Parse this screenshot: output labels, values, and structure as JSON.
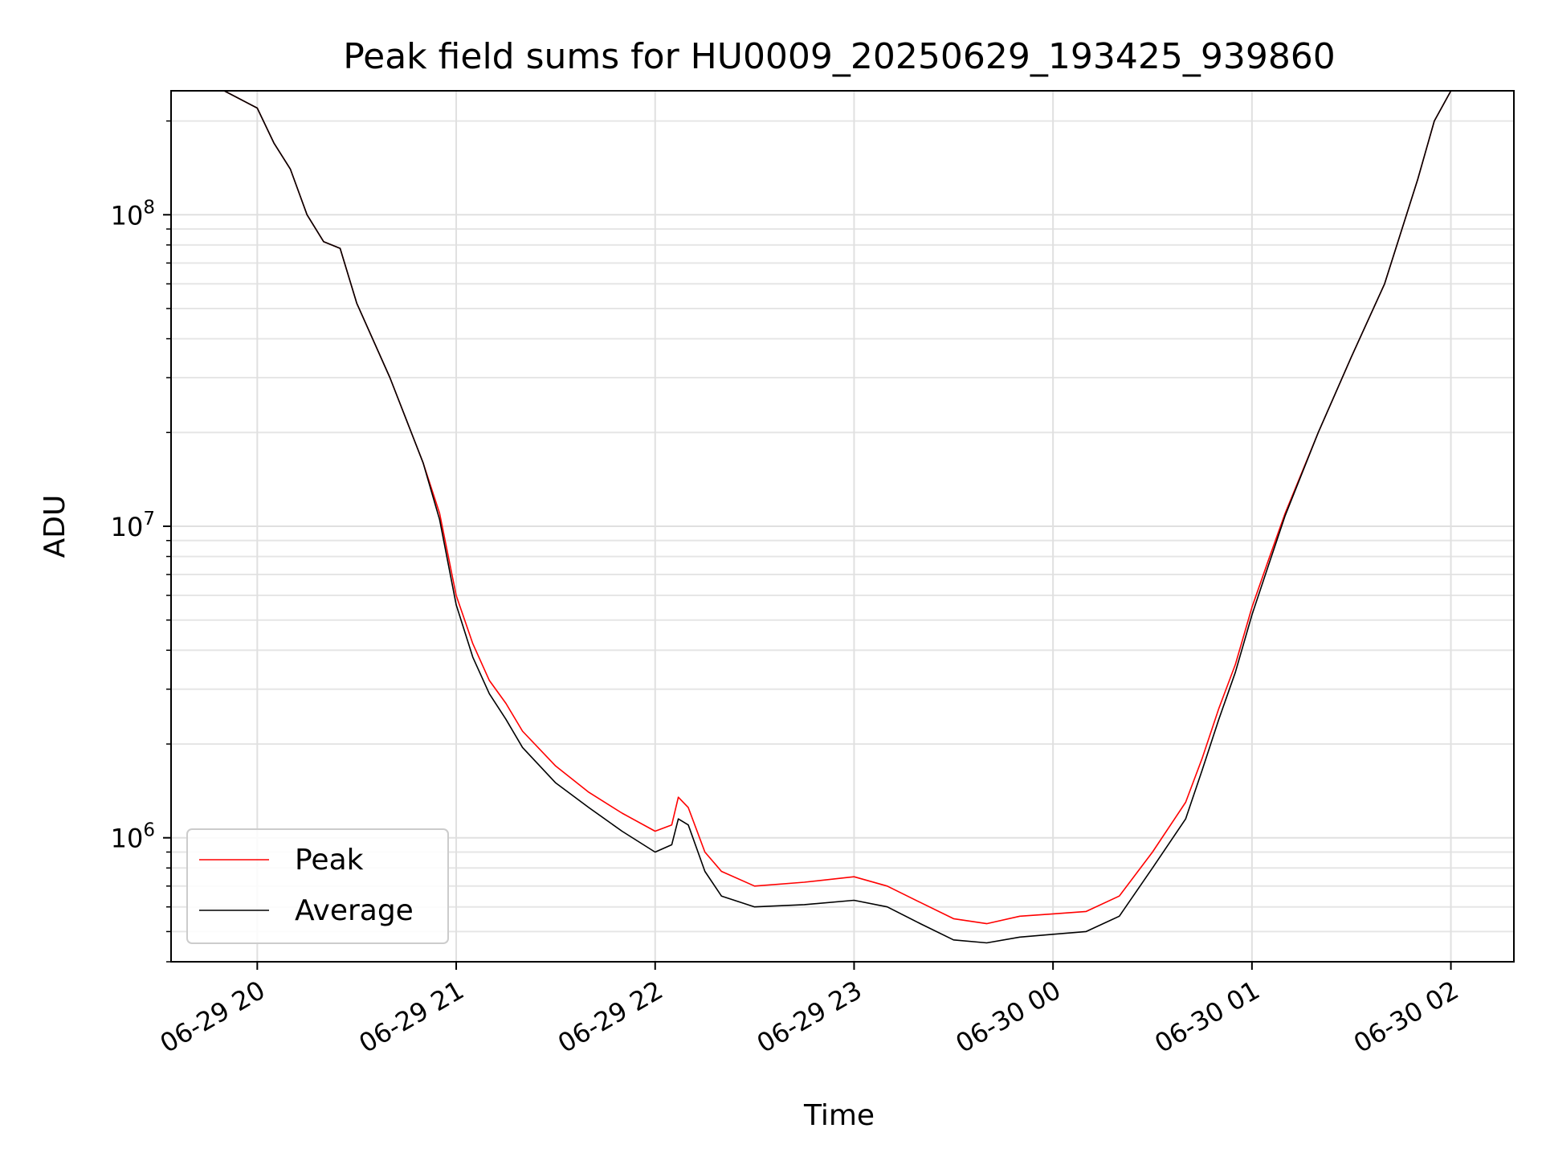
{
  "chart_data": {
    "type": "line",
    "title": "Peak field sums for HU0009_20250629_193425_939860",
    "xlabel": "Time",
    "ylabel": "ADU",
    "y_scale": "log",
    "xlim": [
      "2025-06-29 19:34",
      "2025-06-30 02:19"
    ],
    "ylim": [
      400000,
      250000000
    ],
    "x_ticks": [
      {
        "t": "2025-06-29 20:00",
        "label": "06-29 20"
      },
      {
        "t": "2025-06-29 21:00",
        "label": "06-29 21"
      },
      {
        "t": "2025-06-29 22:00",
        "label": "06-29 22"
      },
      {
        "t": "2025-06-29 23:00",
        "label": "06-29 23"
      },
      {
        "t": "2025-06-30 00:00",
        "label": "06-30 00"
      },
      {
        "t": "2025-06-30 01:00",
        "label": "06-30 01"
      },
      {
        "t": "2025-06-30 02:00",
        "label": "06-30 02"
      }
    ],
    "y_ticks": [
      {
        "value": 1000000,
        "base": "10",
        "exp": "6"
      },
      {
        "value": 10000000,
        "base": "10",
        "exp": "7"
      },
      {
        "value": 100000000,
        "base": "10",
        "exp": "8"
      }
    ],
    "grid": true,
    "legend_position": "lower-left",
    "series": [
      {
        "name": "Peak",
        "color": "#ff0000",
        "points": [
          [
            "2025-06-29 19:50",
            250000000
          ],
          [
            "2025-06-29 20:00",
            220000000
          ],
          [
            "2025-06-29 20:05",
            170000000
          ],
          [
            "2025-06-29 20:10",
            140000000
          ],
          [
            "2025-06-29 20:15",
            100000000
          ],
          [
            "2025-06-29 20:20",
            82000000
          ],
          [
            "2025-06-29 20:25",
            78000000
          ],
          [
            "2025-06-29 20:30",
            52000000
          ],
          [
            "2025-06-29 20:40",
            30000000
          ],
          [
            "2025-06-29 20:50",
            16000000
          ],
          [
            "2025-06-29 20:55",
            11000000
          ],
          [
            "2025-06-29 21:00",
            6000000
          ],
          [
            "2025-06-29 21:05",
            4200000
          ],
          [
            "2025-06-29 21:10",
            3200000
          ],
          [
            "2025-06-29 21:15",
            2700000
          ],
          [
            "2025-06-29 21:20",
            2200000
          ],
          [
            "2025-06-29 21:30",
            1700000
          ],
          [
            "2025-06-29 21:40",
            1400000
          ],
          [
            "2025-06-29 21:50",
            1200000
          ],
          [
            "2025-06-29 22:00",
            1050000
          ],
          [
            "2025-06-29 22:05",
            1100000
          ],
          [
            "2025-06-29 22:07",
            1350000
          ],
          [
            "2025-06-29 22:10",
            1250000
          ],
          [
            "2025-06-29 22:15",
            900000
          ],
          [
            "2025-06-29 22:20",
            780000
          ],
          [
            "2025-06-29 22:30",
            700000
          ],
          [
            "2025-06-29 22:45",
            720000
          ],
          [
            "2025-06-29 23:00",
            750000
          ],
          [
            "2025-06-29 23:10",
            700000
          ],
          [
            "2025-06-29 23:20",
            620000
          ],
          [
            "2025-06-29 23:30",
            550000
          ],
          [
            "2025-06-29 23:40",
            530000
          ],
          [
            "2025-06-29 23:50",
            560000
          ],
          [
            "2025-06-30 00:00",
            570000
          ],
          [
            "2025-06-30 00:10",
            580000
          ],
          [
            "2025-06-30 00:20",
            650000
          ],
          [
            "2025-06-30 00:30",
            900000
          ],
          [
            "2025-06-30 00:40",
            1300000
          ],
          [
            "2025-06-30 00:45",
            1800000
          ],
          [
            "2025-06-30 00:50",
            2600000
          ],
          [
            "2025-06-30 00:55",
            3600000
          ],
          [
            "2025-06-30 01:00",
            5500000
          ],
          [
            "2025-06-30 01:05",
            7800000
          ],
          [
            "2025-06-30 01:10",
            11000000
          ],
          [
            "2025-06-30 01:20",
            20000000
          ],
          [
            "2025-06-30 01:30",
            35000000
          ],
          [
            "2025-06-30 01:40",
            60000000
          ],
          [
            "2025-06-30 01:50",
            130000000
          ],
          [
            "2025-06-30 01:55",
            200000000
          ],
          [
            "2025-06-30 02:00",
            250000000
          ]
        ]
      },
      {
        "name": "Average",
        "color": "#000000",
        "points": [
          [
            "2025-06-29 19:50",
            250000000
          ],
          [
            "2025-06-29 20:00",
            220000000
          ],
          [
            "2025-06-29 20:05",
            170000000
          ],
          [
            "2025-06-29 20:10",
            140000000
          ],
          [
            "2025-06-29 20:15",
            100000000
          ],
          [
            "2025-06-29 20:20",
            82000000
          ],
          [
            "2025-06-29 20:25",
            78000000
          ],
          [
            "2025-06-29 20:30",
            52000000
          ],
          [
            "2025-06-29 20:40",
            30000000
          ],
          [
            "2025-06-29 20:50",
            16000000
          ],
          [
            "2025-06-29 20:55",
            10500000
          ],
          [
            "2025-06-29 21:00",
            5600000
          ],
          [
            "2025-06-29 21:05",
            3800000
          ],
          [
            "2025-06-29 21:10",
            2900000
          ],
          [
            "2025-06-29 21:15",
            2400000
          ],
          [
            "2025-06-29 21:20",
            1950000
          ],
          [
            "2025-06-29 21:30",
            1500000
          ],
          [
            "2025-06-29 21:40",
            1250000
          ],
          [
            "2025-06-29 21:50",
            1050000
          ],
          [
            "2025-06-29 22:00",
            900000
          ],
          [
            "2025-06-29 22:05",
            950000
          ],
          [
            "2025-06-29 22:07",
            1150000
          ],
          [
            "2025-06-29 22:10",
            1100000
          ],
          [
            "2025-06-29 22:15",
            780000
          ],
          [
            "2025-06-29 22:20",
            650000
          ],
          [
            "2025-06-29 22:30",
            600000
          ],
          [
            "2025-06-29 22:45",
            610000
          ],
          [
            "2025-06-29 23:00",
            630000
          ],
          [
            "2025-06-29 23:10",
            600000
          ],
          [
            "2025-06-29 23:20",
            530000
          ],
          [
            "2025-06-29 23:30",
            470000
          ],
          [
            "2025-06-29 23:40",
            460000
          ],
          [
            "2025-06-29 23:50",
            480000
          ],
          [
            "2025-06-30 00:00",
            490000
          ],
          [
            "2025-06-30 00:10",
            500000
          ],
          [
            "2025-06-30 00:20",
            560000
          ],
          [
            "2025-06-30 00:30",
            800000
          ],
          [
            "2025-06-30 00:40",
            1150000
          ],
          [
            "2025-06-30 00:45",
            1650000
          ],
          [
            "2025-06-30 00:50",
            2400000
          ],
          [
            "2025-06-30 00:55",
            3400000
          ],
          [
            "2025-06-30 01:00",
            5200000
          ],
          [
            "2025-06-30 01:05",
            7500000
          ],
          [
            "2025-06-30 01:10",
            10800000
          ],
          [
            "2025-06-30 01:20",
            20000000
          ],
          [
            "2025-06-30 01:30",
            35000000
          ],
          [
            "2025-06-30 01:40",
            60000000
          ],
          [
            "2025-06-30 01:50",
            130000000
          ],
          [
            "2025-06-30 01:55",
            200000000
          ],
          [
            "2025-06-30 02:00",
            250000000
          ]
        ]
      }
    ]
  }
}
